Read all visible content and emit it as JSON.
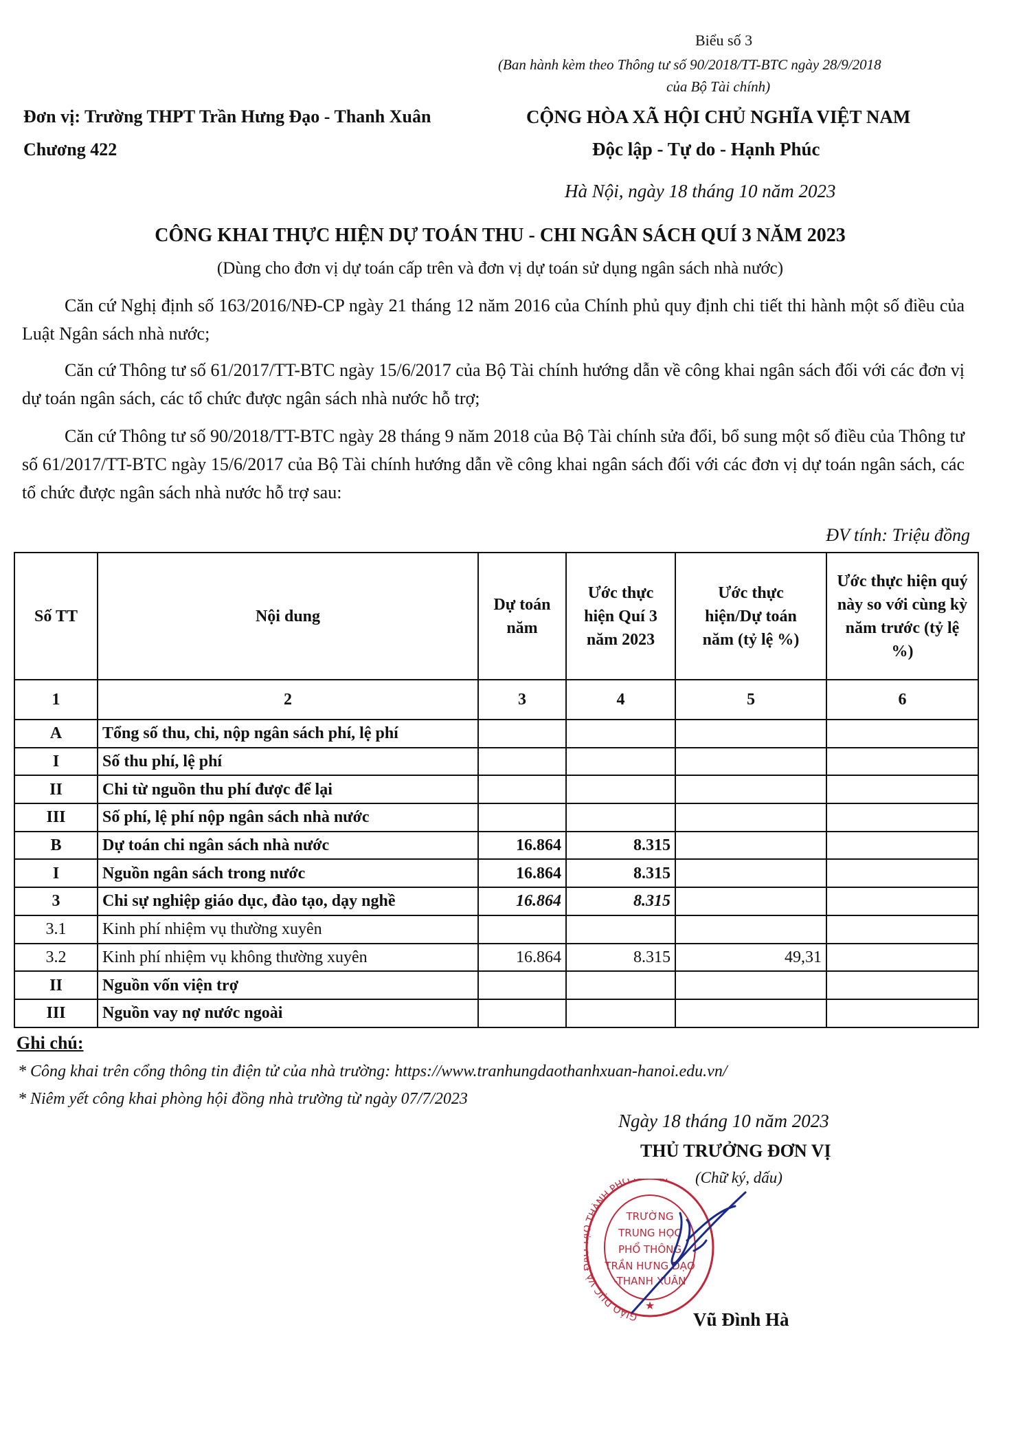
{
  "form_number": "Biểu số 3",
  "form_basis_line1": "(Ban hành kèm theo Thông tư số 90/2018/TT-BTC ngày 28/9/2018",
  "form_basis_line2": "của Bộ Tài chính)",
  "unit": "Đơn vị: Trường THPT Trần Hưng Đạo - Thanh Xuân",
  "chapter": "Chương 422",
  "nation": "CỘNG HÒA XÃ HỘI CHỦ NGHĨA VIỆT NAM",
  "motto": "Độc lập - Tự do - Hạnh Phúc",
  "place_date": "Hà Nội, ngày 18 tháng 10 năm 2023",
  "title": "CÔNG KHAI THỰC HIỆN DỰ TOÁN THU - CHI NGÂN SÁCH QUÍ 3 NĂM 2023",
  "subtitle": "(Dùng cho đơn vị dự toán cấp trên và đơn vị dự toán sử dụng ngân sách nhà nước)",
  "paragraphs": [
    "Căn cứ Nghị định số 163/2016/NĐ-CP ngày 21 tháng 12 năm 2016 của Chính phủ quy định chi tiết thi hành một số điều của Luật Ngân sách nhà nước;",
    "Căn cứ Thông tư số 61/2017/TT-BTC ngày 15/6/2017 của Bộ Tài chính hướng dẫn về công khai ngân sách đối với các đơn vị dự toán ngân sách, các tổ chức được ngân sách nhà nước hỗ trợ;",
    "Căn cứ Thông tư số 90/2018/TT-BTC ngày 28 tháng 9 năm 2018 của Bộ Tài chính sửa đổi, bổ sung một số điều của Thông tư số 61/2017/TT-BTC ngày 15/6/2017 của Bộ Tài chính hướng dẫn về công khai ngân sách đối với các đơn vị dự toán ngân sách, các tổ chức được ngân sách nhà nước hỗ trợ sau:"
  ],
  "unit_of_measure": "ĐV tính: Triệu đồng",
  "table": {
    "headers": [
      "Số TT",
      "Nội dung",
      "Dự toán năm",
      "Ước thực hiện Quí 3 năm 2023",
      "Ước thực hiện/Dự toán năm (tỷ lệ %)",
      "Ước thực hiện quý này so với cùng kỳ năm trước (tỷ lệ %)"
    ],
    "column_numbers": [
      "1",
      "2",
      "3",
      "4",
      "5",
      "6"
    ],
    "rows": [
      [
        "A",
        "Tổng số thu, chi, nộp ngân sách phí, lệ phí",
        "",
        "",
        "",
        ""
      ],
      [
        "I",
        "Số thu phí, lệ phí",
        "",
        "",
        "",
        ""
      ],
      [
        "II",
        "Chi từ nguồn thu phí được để lại",
        "",
        "",
        "",
        ""
      ],
      [
        "III",
        "Số phí, lệ phí nộp ngân sách nhà nước",
        "",
        "",
        "",
        ""
      ],
      [
        "B",
        "Dự toán chi ngân sách nhà nước",
        "16.864",
        "8.315",
        "",
        ""
      ],
      [
        "I",
        "Nguồn ngân sách trong nước",
        "16.864",
        "8.315",
        "",
        ""
      ],
      [
        "3",
        "Chi sự nghiệp giáo dục, đào tạo, dạy nghề",
        "16.864",
        "8.315",
        "",
        ""
      ],
      [
        "3.1",
        "Kinh phí nhiệm vụ thường xuyên",
        "",
        "",
        "",
        ""
      ],
      [
        "3.2",
        "Kinh phí nhiệm vụ không thường xuyên",
        "16.864",
        "8.315",
        "49,31",
        ""
      ],
      [
        "II",
        "Nguồn vốn viện trợ",
        "",
        "",
        "",
        ""
      ],
      [
        "III",
        "Nguồn vay nợ nước ngoài",
        "",
        "",
        "",
        ""
      ]
    ]
  },
  "notes": {
    "heading": "Ghi chú:",
    "items": [
      "* Công khai trên cổng thông tin điện tử của nhà trường: https://www.tranhungdaothanhxuan-hanoi.edu.vn/",
      "* Niêm yết công khai phòng hội đồng nhà trường từ ngày 07/7/2023"
    ]
  },
  "signature": {
    "date": "Ngày 18  tháng 10 năm 2023",
    "role": "THỦ TRƯỞNG ĐƠN VỊ",
    "hint": "(Chữ ký, dấu)",
    "name": "Vũ Đình Hà",
    "stamp_text": [
      "TRƯỜNG",
      "TRUNG HỌC",
      "PHỔ THÔNG",
      "TRẦN HƯNG ĐẠO",
      "-THANH XUÂN"
    ],
    "stamp_ring_text": "GIÁO DỤC VÀ ĐÀO TẠO THÀNH PHỐ HÀ NỘI",
    "stamp_color": "#c0283a",
    "ink_color": "#1b2a8a"
  }
}
